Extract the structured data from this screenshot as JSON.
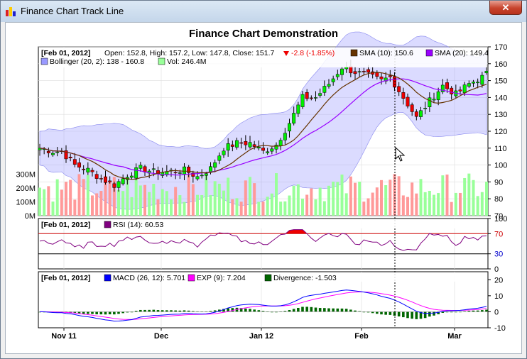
{
  "window": {
    "title": "Finance Chart Track Line",
    "close_glyph": "✕",
    "icon": "chart-app-icon"
  },
  "chart_title": "Finance Chart Demonstration",
  "colors": {
    "up": "#00ee00",
    "down": "#ee0000",
    "sma10": "#663300",
    "sma20": "#9900ff",
    "band_fill": "#9999ff",
    "vol_up": "#99ff99",
    "vol_down": "#ff9999",
    "rsi_line": "#800080",
    "macd": "#0000ff",
    "exp": "#ff00ff",
    "divergence": "#006600"
  },
  "main_legend": {
    "date": "[Feb 01, 2012]",
    "ohlc": "Open: 152.8, High: 157.2, Low: 147.8, Close: 151.7",
    "change": "-2.8 (-1.85%)",
    "sma10": "SMA (10): 150.6",
    "sma20": "SMA (20): 149.4",
    "bollinger": "Bollinger (20, 2): 138 - 160.8",
    "vol": "Vol: 246.4M"
  },
  "rsi_legend": {
    "date": "[Feb 01, 2012]",
    "text": "RSI (14): 60.53"
  },
  "macd_legend": {
    "date": "[Feb 01, 2012]",
    "macd": "MACD (26, 12): 5.701",
    "exp": "EXP (9): 7.204",
    "div": "Divergence: -1.503"
  },
  "x_labels": [
    "Nov 11",
    "Dec",
    "Jan 12",
    "Feb",
    "Mar"
  ],
  "chart_data": [
    {
      "type": "candlestick",
      "ylim": [
        70,
        170
      ],
      "y_ticks": [
        70,
        80,
        90,
        100,
        110,
        120,
        130,
        140,
        150,
        160,
        170
      ],
      "volume_ticks": [
        "0M",
        "100M",
        "200M",
        "300M"
      ],
      "x_tick_labels": [
        "Nov 11",
        "Dec",
        "Jan 12",
        "Feb",
        "Mar"
      ],
      "close_anchors": [
        [
          0,
          110
        ],
        [
          3,
          108
        ],
        [
          5,
          108
        ],
        [
          8,
          100
        ],
        [
          11,
          97
        ],
        [
          14,
          92
        ],
        [
          17,
          88
        ],
        [
          20,
          94
        ],
        [
          23,
          98
        ],
        [
          26,
          96
        ],
        [
          29,
          96
        ],
        [
          33,
          97
        ],
        [
          36,
          93
        ],
        [
          39,
          98
        ],
        [
          42,
          110
        ],
        [
          45,
          113
        ],
        [
          48,
          113
        ],
        [
          51,
          108
        ],
        [
          54,
          112
        ],
        [
          57,
          125
        ],
        [
          60,
          140
        ],
        [
          63,
          140
        ],
        [
          66,
          148
        ],
        [
          69,
          158
        ],
        [
          72,
          155
        ],
        [
          75,
          153
        ],
        [
          78,
          150
        ],
        [
          80,
          152
        ],
        [
          83,
          140
        ],
        [
          86,
          128
        ],
        [
          89,
          138
        ],
        [
          92,
          147
        ],
        [
          95,
          142
        ],
        [
          98,
          148
        ],
        [
          101,
          152
        ],
        [
          102,
          154
        ]
      ],
      "series_count": 103
    },
    {
      "type": "line",
      "name": "RSI (14)",
      "ylim": [
        0,
        100
      ],
      "y_ticks": [
        0,
        30,
        70,
        100
      ],
      "thresholds": [
        30,
        70
      ]
    },
    {
      "type": "line",
      "name": "MACD (26, 12)",
      "ylim": [
        -10,
        25
      ],
      "y_ticks": [
        -10,
        0,
        10,
        20
      ]
    }
  ]
}
